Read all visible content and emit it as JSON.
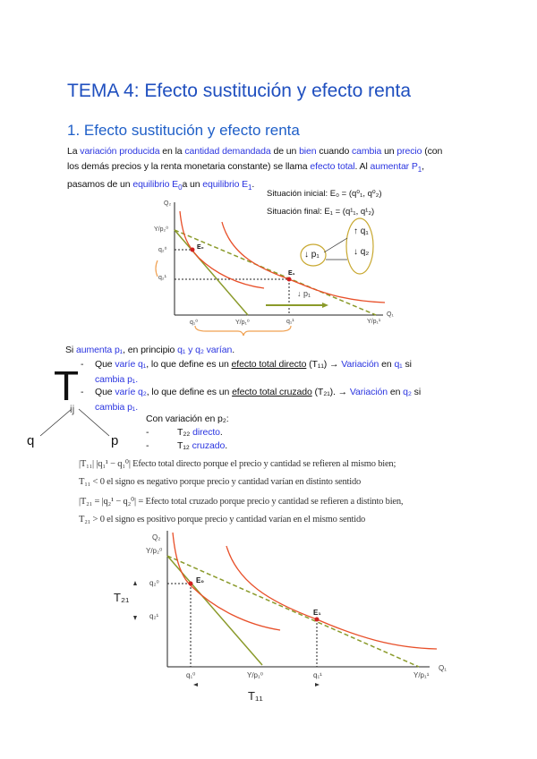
{
  "title": "TEMA 4: Efecto sustitución y efecto renta",
  "section": "1. Efecto sustitución y efecto renta",
  "intro": [
    [
      "La ",
      "variación producida",
      " en la ",
      "cantidad demandada",
      " de un ",
      "bien",
      " cuando ",
      "cambia",
      " un ",
      "precio",
      " (con"
    ],
    [
      "los demás precios y la renta monetaria constante) se llama ",
      "efecto total",
      ". Al ",
      "aumentar P",
      "1",
      ","
    ],
    [
      "pasamos de un ",
      "equilibrio E",
      "0",
      "a un ",
      "equilibrio E",
      "1",
      "."
    ]
  ],
  "situacion_inicial": "Situación inicial: E₀ = (q⁰₁, q⁰₂)",
  "situacion_final": "Situación final: E₁ = (q¹₁, q¹₂)",
  "diagram1": {
    "y_axis": "Q₂",
    "x_axis": "Q₁",
    "y_int": "Y/p₂⁰",
    "q2_0": "q₂⁰",
    "q2_1": "q₂¹",
    "q1_0": "q₁⁰",
    "x_int0": "Y/p₁⁰",
    "q1_1": "q₁¹",
    "x_int1": "Y/p₁¹",
    "e0": "E₀",
    "e1": "E₁",
    "p1_down": "↓ p₁",
    "box_p1": "↓ p₁",
    "box_q1": "↑ q₁",
    "box_q2": "↓ q₂"
  },
  "si_aumenta": [
    "Si ",
    "aumenta p₁",
    ", en principio ",
    "q₁",
    " y ",
    "q₂",
    " varían",
    "."
  ],
  "bullet1": [
    "Que ",
    "varíe",
    " ",
    "q₁",
    ",  lo que define es un ",
    "efecto total directo",
    " (T₁₁) → ",
    "Variación",
    " en ",
    "q₁",
    " si"
  ],
  "bullet1b": "cambia p₁.",
  "bullet2": [
    "Que ",
    "varíe",
    " ",
    "q₂",
    ", lo que define es un ",
    "efecto total cruzado",
    "  (T₂₁). → ",
    "Variación",
    " en ",
    "q₂",
    " si"
  ],
  "bullet2b": "cambia p₁.",
  "tij": {
    "T": "T",
    "ij": "ij",
    "q": "q",
    "p": "p"
  },
  "con_variacion": "Con variación en p₂:",
  "t22": [
    "T₂₂ ",
    "directo",
    "."
  ],
  "t12": [
    "T₁₂ ",
    "cruzado",
    "."
  ],
  "dash": "-",
  "math": [
    "|T₁₁|  |q₁¹ − q₁⁰|    Efecto total directo porque el precio y cantidad se refieren al mismo bien;",
    "T₁₁ < 0    el signo es negativo porque precio y cantidad varían en distinto sentido",
    "|T₂₁ = |q₂¹ − q₂⁰| =  Efecto total cruzado porque precio y cantidad se refieren a distinto bien,",
    "T₂₁ > 0    el signo es positivo porque precio y cantidad varían en el mismo sentido"
  ],
  "diagram2": {
    "y_axis": "Q₂",
    "x_axis": "Q₁",
    "y_int": "Y/p₂⁰",
    "q2_0": "q₂⁰",
    "q2_1": "q₂¹",
    "q1_0": "q₁⁰",
    "x_int0": "Y/p₁⁰",
    "q1_1": "q₁¹",
    "x_int1": "Y/p₁¹",
    "e0": "E₀",
    "e1": "E₁",
    "t21": "T₂₁",
    "t11": "T₁₁"
  },
  "colors": {
    "blue": "#2b35e0",
    "title": "#1f4fbf",
    "curve": "#e8502a",
    "line": "#8a9a2a",
    "brace": "#f0a050",
    "box": "#c8a830"
  }
}
